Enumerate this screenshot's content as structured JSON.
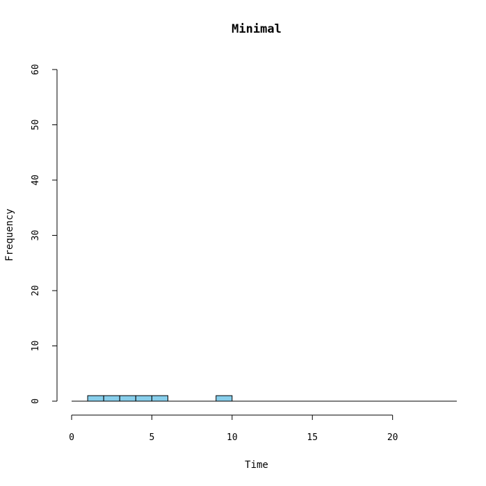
{
  "chart_data": {
    "type": "bar",
    "title": "Minimal",
    "xlabel": "Time",
    "ylabel": "Frequency",
    "bins": [
      {
        "x0": 0,
        "x1": 1,
        "count": 0
      },
      {
        "x0": 1,
        "x1": 2,
        "count": 1
      },
      {
        "x0": 2,
        "x1": 3,
        "count": 1
      },
      {
        "x0": 3,
        "x1": 4,
        "count": 1
      },
      {
        "x0": 4,
        "x1": 5,
        "count": 1
      },
      {
        "x0": 5,
        "x1": 6,
        "count": 1
      },
      {
        "x0": 6,
        "x1": 7,
        "count": 0
      },
      {
        "x0": 7,
        "x1": 8,
        "count": 0
      },
      {
        "x0": 8,
        "x1": 9,
        "count": 0
      },
      {
        "x0": 9,
        "x1": 10,
        "count": 1
      },
      {
        "x0": 10,
        "x1": 11,
        "count": 0
      },
      {
        "x0": 11,
        "x1": 12,
        "count": 0
      },
      {
        "x0": 12,
        "x1": 13,
        "count": 0
      },
      {
        "x0": 13,
        "x1": 14,
        "count": 0
      },
      {
        "x0": 14,
        "x1": 15,
        "count": 0
      },
      {
        "x0": 15,
        "x1": 16,
        "count": 0
      },
      {
        "x0": 16,
        "x1": 17,
        "count": 0
      },
      {
        "x0": 17,
        "x1": 18,
        "count": 0
      },
      {
        "x0": 18,
        "x1": 19,
        "count": 0
      },
      {
        "x0": 19,
        "x1": 20,
        "count": 0
      },
      {
        "x0": 20,
        "x1": 21,
        "count": 0
      },
      {
        "x0": 21,
        "x1": 22,
        "count": 0
      },
      {
        "x0": 22,
        "x1": 23,
        "count": 0
      },
      {
        "x0": 23,
        "x1": 24,
        "count": 0
      }
    ],
    "xlim": [
      0,
      24
    ],
    "ylim": [
      0,
      60
    ],
    "xticks": [
      0,
      5,
      10,
      15,
      20
    ],
    "yticks": [
      0,
      10,
      20,
      30,
      40,
      50,
      60
    ],
    "grid": false,
    "bar_color": "#87CEEB",
    "bar_border_color": "#000000"
  }
}
